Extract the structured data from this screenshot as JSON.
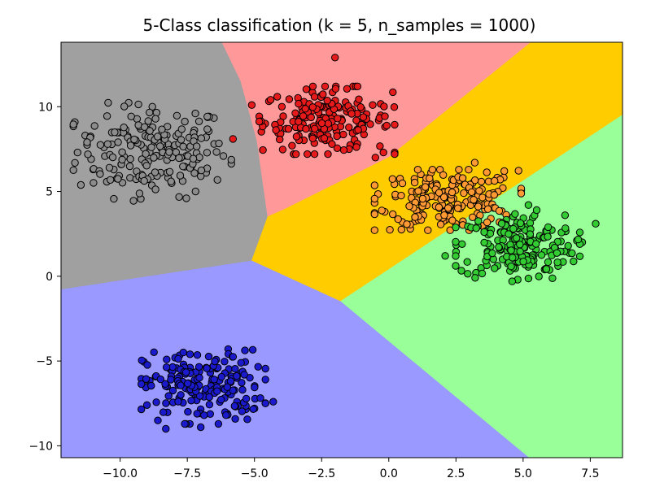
{
  "chart_data": {
    "type": "scatter",
    "title": "5-Class classification (k = 5, n_samples = 1000)",
    "xlabel": "",
    "ylabel": "",
    "xlim": [
      -12.2,
      8.7
    ],
    "ylim": [
      -10.7,
      13.8
    ],
    "x_ticks": [
      -10.0,
      -7.5,
      -5.0,
      -2.5,
      0.0,
      2.5,
      5.0,
      7.5
    ],
    "x_tick_labels": [
      "−10.0",
      "−7.5",
      "−5.0",
      "−2.5",
      "0.0",
      "2.5",
      "5.0",
      "7.5"
    ],
    "y_ticks": [
      -10,
      -5,
      0,
      5,
      10
    ],
    "y_tick_labels": [
      "−10",
      "−5",
      "0",
      "5",
      "10"
    ],
    "grid": false,
    "legend": "none",
    "background_regions": [
      {
        "class": "gray",
        "color": "#a0a0a0",
        "polygon": [
          [
            -12.2,
            13.8
          ],
          [
            -6.2,
            13.8
          ],
          [
            -5.5,
            11.5
          ],
          [
            -4.9,
            8.0
          ],
          [
            -4.5,
            3.5
          ],
          [
            -5.1,
            0.9
          ],
          [
            -12.2,
            -0.8
          ]
        ]
      },
      {
        "class": "red",
        "color": "#ff9999",
        "polygon": [
          [
            -6.2,
            13.8
          ],
          [
            5.3,
            13.8
          ],
          [
            0.0,
            7.0
          ],
          [
            -3.8,
            4.0
          ],
          [
            -4.5,
            3.5
          ],
          [
            -4.9,
            8.0
          ],
          [
            -5.5,
            11.5
          ]
        ]
      },
      {
        "class": "orange",
        "color": "#ffcc00",
        "polygon": [
          [
            5.3,
            13.8
          ],
          [
            8.7,
            13.8
          ],
          [
            8.7,
            9.5
          ],
          [
            -1.8,
            -1.5
          ],
          [
            -5.1,
            0.9
          ],
          [
            -4.5,
            3.5
          ],
          [
            -3.8,
            4.0
          ],
          [
            0.0,
            7.0
          ]
        ]
      },
      {
        "class": "green",
        "color": "#99ff99",
        "polygon": [
          [
            8.7,
            9.5
          ],
          [
            8.7,
            -10.7
          ],
          [
            5.2,
            -10.7
          ],
          [
            -1.8,
            -1.5
          ]
        ]
      },
      {
        "class": "blue",
        "color": "#9999ff",
        "polygon": [
          [
            -12.2,
            -0.8
          ],
          [
            -5.1,
            0.9
          ],
          [
            -1.8,
            -1.5
          ],
          [
            5.2,
            -10.7
          ],
          [
            -12.2,
            -10.7
          ]
        ]
      }
    ],
    "series": [
      {
        "color": "#8c8c8c",
        "center": [
          -8.8,
          7.4
        ],
        "spread": [
          1.4,
          1.35
        ],
        "count": 200,
        "points": [
          [
            -11.3,
            8.3
          ],
          [
            -11.1,
            8.25
          ],
          [
            -11.0,
            6.3
          ],
          [
            -10.6,
            7.6
          ],
          [
            -9.5,
            4.45
          ],
          [
            -8.8,
            10.0
          ],
          [
            -7.2,
            9.6
          ],
          [
            -6.8,
            8.2
          ],
          [
            -6.8,
            6.1
          ],
          [
            -6.5,
            7.8
          ],
          [
            -7.0,
            5.9
          ],
          [
            -9.2,
            6.0
          ]
        ]
      },
      {
        "color": "#e61a1a",
        "center": [
          -2.3,
          9.2
        ],
        "spread": [
          1.2,
          0.95
        ],
        "count": 200,
        "points": [
          [
            -2.0,
            12.9
          ],
          [
            -5.8,
            8.1
          ],
          [
            -5.1,
            10.1
          ],
          [
            -0.6,
            10.1
          ],
          [
            -0.2,
            7.3
          ],
          [
            -0.5,
            7.0
          ],
          [
            -4.6,
            9.0
          ],
          [
            -3.6,
            7.7
          ]
        ]
      },
      {
        "color": "#ff9933",
        "center": [
          2.2,
          4.5
        ],
        "spread": [
          1.3,
          0.85
        ],
        "count": 200,
        "points": [
          [
            -0.4,
            4.85
          ],
          [
            -0.15,
            3.8
          ],
          [
            0.5,
            3.2
          ],
          [
            0.8,
            2.8
          ],
          [
            3.2,
            6.7
          ],
          [
            4.3,
            6.2
          ],
          [
            3.8,
            3.4
          ]
        ]
      },
      {
        "color": "#33cc33",
        "center": [
          4.8,
          1.8
        ],
        "spread": [
          1.1,
          1.0
        ],
        "count": 200,
        "points": [
          [
            7.7,
            3.1
          ],
          [
            7.2,
            2.0
          ],
          [
            7.0,
            2.1
          ],
          [
            2.1,
            1.2
          ],
          [
            4.8,
            -0.2
          ],
          [
            5.8,
            0.4
          ],
          [
            6.3,
            0.6
          ],
          [
            5.2,
            4.2
          ]
        ]
      },
      {
        "color": "#1a1acc",
        "center": [
          -6.9,
          -6.5
        ],
        "spread": [
          1.1,
          1.05
        ],
        "count": 200,
        "points": [
          [
            -4.3,
            -7.4
          ],
          [
            -8.3,
            -9.0
          ],
          [
            -7.0,
            -8.9
          ],
          [
            -5.0,
            -7.8
          ],
          [
            -9.0,
            -7.6
          ],
          [
            -7.4,
            -4.6
          ]
        ]
      }
    ]
  }
}
